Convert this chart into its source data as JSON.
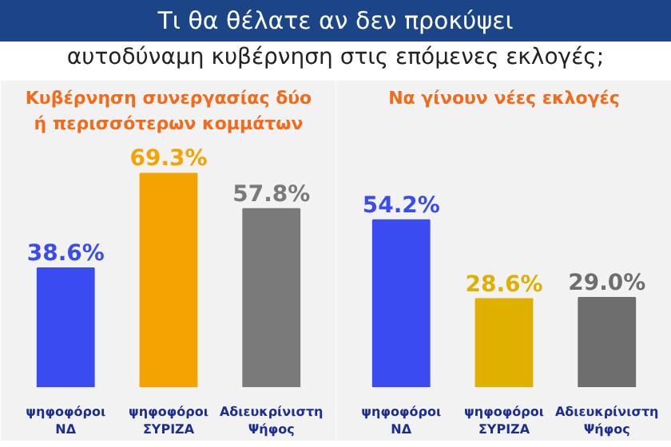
{
  "chart_data": [
    {
      "type": "bar",
      "title": "Τι θα θέλατε αν δεν προκύψει",
      "subtitle": "αυτοδύναμη κυβέρνηση στις επόμενες εκλογές;",
      "xlabel": "Κυβέρνηση συνεργασίας δύο\nή περισσότερων κομμάτων",
      "categories": [
        "ψηφοφόροι\nΝΔ",
        "ψηφοφόροι\nΣΥΡΙΖΑ",
        "Αδιευκρίνιστη\nΨήφος"
      ],
      "values": [
        38.6,
        69.3,
        57.8
      ],
      "value_labels": [
        "38.6%",
        "69.3%",
        "57.8%"
      ],
      "colors": [
        "#3a4cf0",
        "#f5a300",
        "#7a7a7a"
      ]
    },
    {
      "type": "bar",
      "xlabel": "Να γίνουν νέες εκλογές",
      "categories": [
        "ψηφοφόροι\nΝΔ",
        "ψηφοφόροι\nΣΥΡΙΖΑ",
        "Αδιευκρίνιστη\nΨήφος"
      ],
      "values": [
        54.2,
        28.6,
        29.0
      ],
      "value_labels": [
        "54.2%",
        "28.6%",
        "29.0%"
      ],
      "colors": [
        "#3a4cf0",
        "#e0b000",
        "#6e6e6e"
      ]
    }
  ]
}
